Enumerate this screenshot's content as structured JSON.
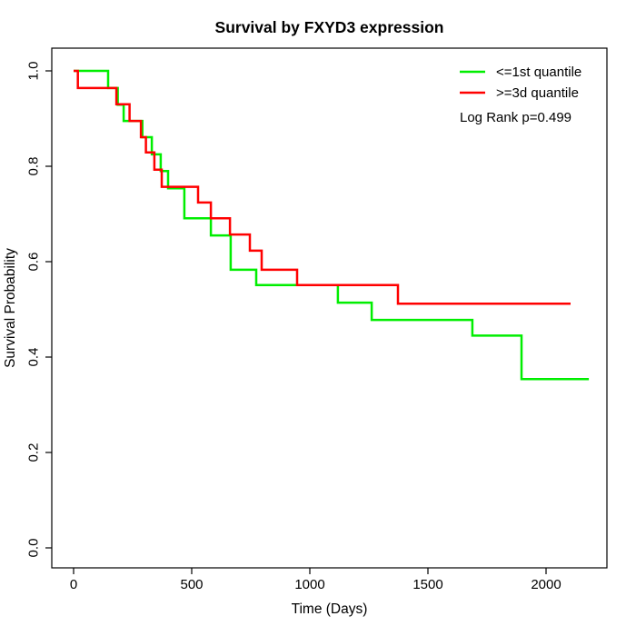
{
  "chart_data": {
    "type": "line",
    "chart_kind": "kaplan-meier-step",
    "title": "Survival by FXYD3 expression",
    "xlabel": "Time (Days)",
    "ylabel": "Survival Probability",
    "xlim": [
      0,
      2260
    ],
    "ylim": [
      0,
      1.04
    ],
    "grid": false,
    "legend_position": "top-right-inside",
    "annotation": "Log Rank p=0.499",
    "x_ticks": [
      0,
      500,
      1000,
      1500,
      2000
    ],
    "y_tick_labels": [
      "0.0",
      "0.2",
      "0.4",
      "0.6",
      "0.8",
      "1.0"
    ],
    "series": [
      {
        "name": "<=1st quantile",
        "color": "#00ee00",
        "step": "post",
        "points": [
          [
            0,
            1.0
          ],
          [
            146,
            0.964
          ],
          [
            187,
            0.929
          ],
          [
            212,
            0.895
          ],
          [
            291,
            0.861
          ],
          [
            331,
            0.825
          ],
          [
            369,
            0.79
          ],
          [
            400,
            0.754
          ],
          [
            469,
            0.691
          ],
          [
            581,
            0.655
          ],
          [
            665,
            0.583
          ],
          [
            773,
            0.551
          ],
          [
            1119,
            0.514
          ],
          [
            1262,
            0.478
          ],
          [
            1688,
            0.445
          ],
          [
            1896,
            0.354
          ],
          [
            2181,
            0.354
          ]
        ]
      },
      {
        "name": ">=3d quantile",
        "color": "#ff0000",
        "step": "post",
        "points": [
          [
            0,
            1.0
          ],
          [
            18,
            0.964
          ],
          [
            181,
            0.93
          ],
          [
            237,
            0.895
          ],
          [
            285,
            0.861
          ],
          [
            306,
            0.829
          ],
          [
            342,
            0.793
          ],
          [
            373,
            0.757
          ],
          [
            527,
            0.724
          ],
          [
            581,
            0.691
          ],
          [
            662,
            0.657
          ],
          [
            746,
            0.623
          ],
          [
            796,
            0.583
          ],
          [
            946,
            0.551
          ],
          [
            1373,
            0.512
          ],
          [
            2104,
            0.512
          ]
        ]
      }
    ]
  }
}
